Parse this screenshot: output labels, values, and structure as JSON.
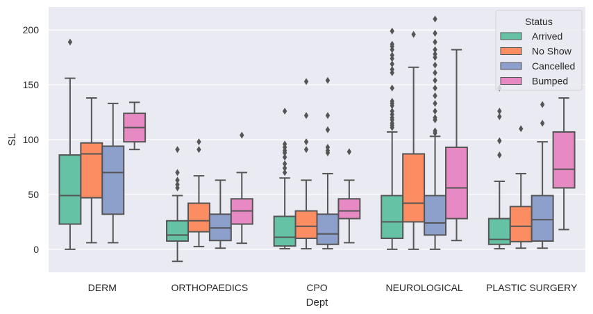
{
  "chart_data": {
    "type": "box",
    "title": "",
    "xlabel": "Dept",
    "ylabel": "SL",
    "ylim": [
      -21,
      221
    ],
    "yticks": [
      0,
      50,
      100,
      150,
      200
    ],
    "grid": true,
    "categories": [
      "DERM",
      "ORTHOPAEDICS",
      "CPO",
      "NEUROLOGICAL",
      "PLASTIC SURGERY"
    ],
    "legend": {
      "title": "Status",
      "placement": "top-right",
      "entries": [
        "Arrived",
        "No Show",
        "Cancelled",
        "Bumped"
      ]
    },
    "colors": {
      "Arrived": "#66c2a5",
      "No Show": "#fc8d62",
      "Cancelled": "#8da0cb",
      "Bumped": "#e78ac3",
      "line": "#555555",
      "background": "#eaeaf2",
      "grid": "#ffffff"
    },
    "series": [
      {
        "name": "Arrived",
        "boxes": [
          {
            "whislo": 0,
            "q1": 23,
            "med": 49,
            "q3": 86,
            "whishi": 156,
            "fliers": [
              189
            ]
          },
          {
            "whislo": -11,
            "q1": 7.5,
            "med": 13,
            "q3": 26,
            "whishi": 49,
            "fliers": [
              56,
              59,
              63,
              70,
              91
            ]
          },
          {
            "whislo": 0.5,
            "q1": 3,
            "med": 11,
            "q3": 30,
            "whishi": 65,
            "fliers": [
              70,
              74,
              78,
              84,
              88,
              90,
              93,
              96,
              126
            ]
          },
          {
            "whislo": 0,
            "q1": 10,
            "med": 25,
            "q3": 49,
            "whishi": 107,
            "fliers": [
              111,
              113,
              115,
              118,
              120,
              123,
              126,
              131,
              133,
              135,
              147,
              161,
              164,
              169,
              174,
              177,
              182,
              185,
              187,
              199
            ]
          },
          {
            "whislo": 0.5,
            "q1": 4.5,
            "med": 9,
            "q3": 28,
            "whishi": 62,
            "fliers": [
              86,
              99,
              121,
              126,
              147
            ]
          }
        ]
      },
      {
        "name": "No Show",
        "boxes": [
          {
            "whislo": 6,
            "q1": 47,
            "med": 87,
            "q3": 97,
            "whishi": 138,
            "fliers": []
          },
          {
            "whislo": 2.5,
            "q1": 16,
            "med": 26,
            "q3": 42,
            "whishi": 67,
            "fliers": [
              91,
              98
            ]
          },
          {
            "whislo": 0.5,
            "q1": 10,
            "med": 21,
            "q3": 35,
            "whishi": 63,
            "fliers": [
              91,
              98,
              122,
              153
            ]
          },
          {
            "whislo": 0,
            "q1": 25,
            "med": 42,
            "q3": 87,
            "whishi": 166,
            "fliers": [
              196
            ]
          },
          {
            "whislo": 1,
            "q1": 7,
            "med": 21,
            "q3": 39,
            "whishi": 69,
            "fliers": [
              110
            ]
          }
        ]
      },
      {
        "name": "Cancelled",
        "boxes": [
          {
            "whislo": 6,
            "q1": 32,
            "med": 70,
            "q3": 94,
            "whishi": 133,
            "fliers": []
          },
          {
            "whislo": 1,
            "q1": 8,
            "med": 19.5,
            "q3": 32,
            "whishi": 63,
            "fliers": []
          },
          {
            "whislo": 0.5,
            "q1": 4.5,
            "med": 14,
            "q3": 32,
            "whishi": 69,
            "fliers": [
              88,
              90,
              93,
              109,
              122,
              154
            ]
          },
          {
            "whislo": 0,
            "q1": 13,
            "med": 24,
            "q3": 49,
            "whishi": 103,
            "fliers": [
              106,
              108,
              118,
              120,
              126,
              133,
              140,
              147,
              154,
              161,
              168,
              175,
              178,
              182,
              189,
              197,
              210
            ]
          },
          {
            "whislo": 1,
            "q1": 7.5,
            "med": 27,
            "q3": 49,
            "whishi": 98,
            "fliers": [
              115,
              132
            ]
          }
        ]
      },
      {
        "name": "Bumped",
        "boxes": [
          {
            "whislo": 91,
            "q1": 98,
            "med": 111,
            "q3": 124,
            "whishi": 134,
            "fliers": []
          },
          {
            "whislo": 5.5,
            "q1": 23,
            "med": 35,
            "q3": 46,
            "whishi": 70,
            "fliers": [
              104
            ]
          },
          {
            "whislo": 6,
            "q1": 28,
            "med": 35,
            "q3": 46,
            "whishi": 63,
            "fliers": [
              89
            ]
          },
          {
            "whislo": 8,
            "q1": 28,
            "med": 56,
            "q3": 93,
            "whishi": 182,
            "fliers": []
          },
          {
            "whislo": 18,
            "q1": 56,
            "med": 73,
            "q3": 107,
            "whishi": 138,
            "fliers": []
          }
        ]
      }
    ]
  }
}
